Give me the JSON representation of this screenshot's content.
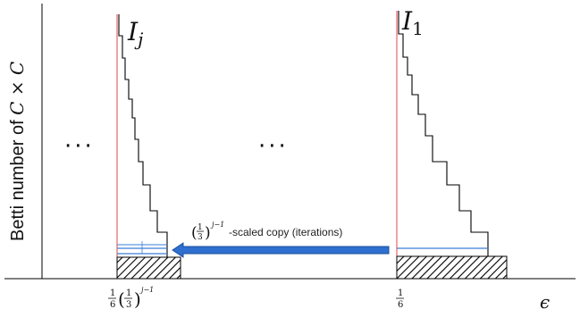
{
  "axes": {
    "y_label_text": "Betti number of ",
    "y_label_math": "C × C",
    "x_label": "ϵ"
  },
  "left_block": {
    "label_main": "I",
    "label_sub": "j",
    "x_tick": {
      "num": "1",
      "den": "6",
      "paren_num": "1",
      "paren_den": "3",
      "exponent": "j−1"
    }
  },
  "right_block": {
    "label_main": "I",
    "label_sub": "1",
    "x_tick": {
      "num": "1",
      "den": "6"
    }
  },
  "ellipsis_left": "···",
  "ellipsis_middle": "···",
  "arrow": {
    "paren_num": "1",
    "paren_den": "3",
    "exponent": "j−1",
    "text": "-scaled copy (iterations)"
  },
  "colors": {
    "axis": "#000000",
    "staircase": "#000000",
    "marker_line": "#e03030",
    "thin_bars": "#3a7fd5",
    "arrow_fill": "#2f6fd0",
    "arrow_stroke": "#1a4f9a",
    "hatch": "#000000"
  }
}
